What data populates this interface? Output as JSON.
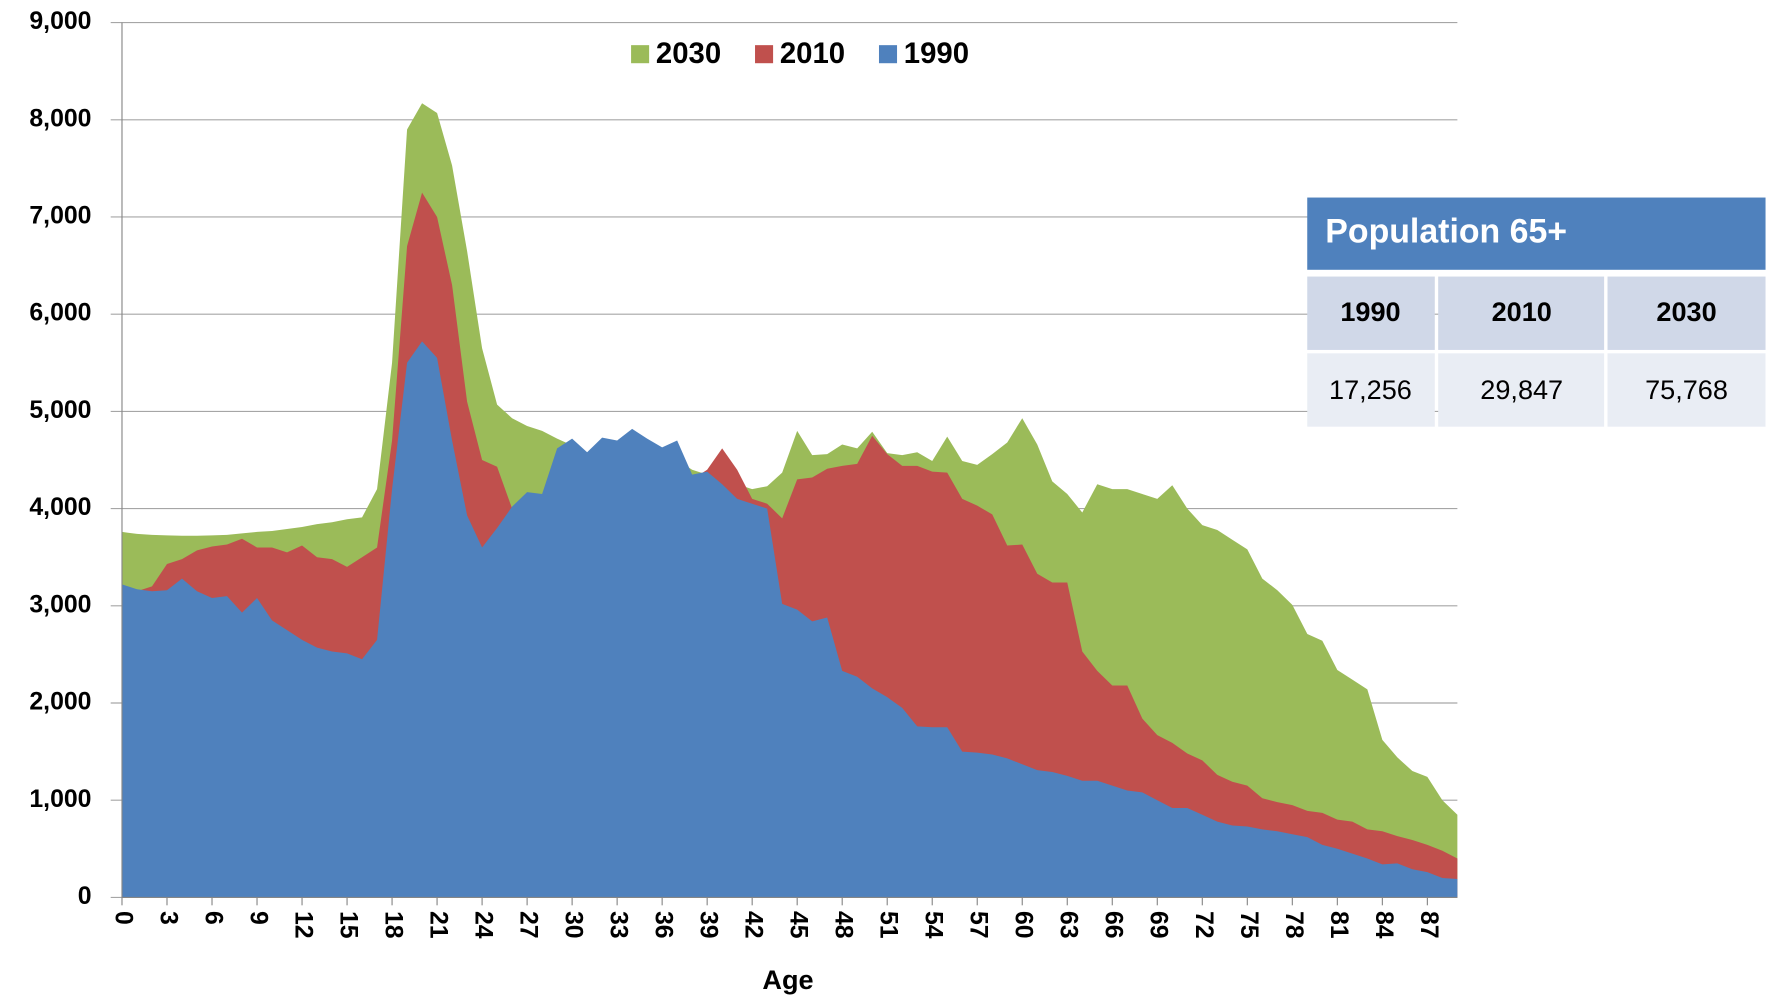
{
  "chart_data": {
    "type": "area",
    "x_label": "Age",
    "x": [
      0,
      1,
      2,
      3,
      4,
      5,
      6,
      7,
      8,
      9,
      10,
      11,
      12,
      13,
      14,
      15,
      16,
      17,
      18,
      19,
      20,
      21,
      22,
      23,
      24,
      25,
      26,
      27,
      28,
      29,
      30,
      31,
      32,
      33,
      34,
      35,
      36,
      37,
      38,
      39,
      40,
      41,
      42,
      43,
      44,
      45,
      46,
      47,
      48,
      49,
      50,
      51,
      52,
      53,
      54,
      55,
      56,
      57,
      58,
      59,
      60,
      61,
      62,
      63,
      64,
      65,
      66,
      67,
      68,
      69,
      70,
      71,
      72,
      73,
      74,
      75,
      76,
      77,
      78,
      79,
      80,
      81,
      82,
      83,
      84,
      85,
      86,
      87,
      88,
      89
    ],
    "xlim": [
      0,
      89
    ],
    "xticks": [
      0,
      3,
      6,
      9,
      12,
      15,
      18,
      21,
      24,
      27,
      30,
      33,
      36,
      39,
      42,
      45,
      48,
      51,
      54,
      57,
      60,
      63,
      66,
      69,
      72,
      75,
      78,
      81,
      84,
      87
    ],
    "ylim": [
      0,
      9000
    ],
    "yticks": [
      0,
      {
        "value": 1000,
        "label": "1,000"
      },
      {
        "value": 2000,
        "label": "2,000"
      },
      {
        "value": 3000,
        "label": "3,000"
      },
      {
        "value": 4000,
        "label": "4,000"
      },
      {
        "value": 5000,
        "label": "5,000"
      },
      {
        "value": 6000,
        "label": "6,000"
      },
      {
        "value": 7000,
        "label": "7,000"
      },
      {
        "value": 8000,
        "label": "8,000"
      },
      {
        "value": 9000,
        "label": "9,000"
      }
    ],
    "grid": true,
    "legend": "top",
    "series": [
      {
        "name": "2030",
        "color": "#9bbb59",
        "values": [
          3760,
          3740,
          3730,
          3725,
          3720,
          3720,
          3725,
          3730,
          3745,
          3760,
          3770,
          3790,
          3810,
          3840,
          3860,
          3890,
          3910,
          4200,
          5500,
          7900,
          8170,
          8070,
          7530,
          6650,
          5650,
          5070,
          4930,
          4850,
          4800,
          4720,
          4650,
          4580,
          4600,
          4600,
          4650,
          4600,
          4550,
          4500,
          4400,
          4350,
          4300,
          4250,
          4200,
          4230,
          4370,
          4800,
          4550,
          4560,
          4660,
          4620,
          4790,
          4570,
          4550,
          4580,
          4490,
          4740,
          4490,
          4450,
          4560,
          4680,
          4930,
          4660,
          4280,
          4150,
          3960,
          4250,
          4200,
          4200,
          4150,
          4100,
          4240,
          4000,
          3830,
          3780,
          3680,
          3580,
          3280,
          3160,
          3010,
          2710,
          2640,
          2340,
          2240,
          2140,
          1620,
          1440,
          1300,
          1240,
          1000,
          850
        ]
      },
      {
        "name": "2010",
        "color": "#c0504d",
        "values": [
          3200,
          3150,
          3200,
          3430,
          3480,
          3570,
          3610,
          3630,
          3690,
          3600,
          3600,
          3550,
          3620,
          3500,
          3480,
          3400,
          3500,
          3600,
          4700,
          6700,
          7250,
          7000,
          6300,
          5100,
          4500,
          4430,
          4000,
          4100,
          4100,
          4500,
          4500,
          4450,
          4500,
          4500,
          4550,
          4500,
          4450,
          4450,
          4300,
          4400,
          4620,
          4400,
          4100,
          4050,
          3900,
          4300,
          4320,
          4410,
          4440,
          4460,
          4750,
          4560,
          4440,
          4440,
          4380,
          4370,
          4100,
          4030,
          3940,
          3620,
          3630,
          3330,
          3240,
          3240,
          2530,
          2330,
          2180,
          2180,
          1840,
          1670,
          1590,
          1480,
          1410,
          1260,
          1190,
          1150,
          1020,
          980,
          950,
          890,
          870,
          800,
          780,
          700,
          680,
          630,
          590,
          540,
          480,
          400
        ]
      },
      {
        "name": "1990",
        "color": "#4f81bd",
        "values": [
          3220,
          3170,
          3150,
          3160,
          3280,
          3150,
          3080,
          3100,
          2930,
          3080,
          2850,
          2750,
          2650,
          2570,
          2530,
          2510,
          2450,
          2650,
          4200,
          5500,
          5720,
          5550,
          4700,
          3930,
          3600,
          3800,
          4020,
          4170,
          4150,
          4620,
          4720,
          4580,
          4730,
          4700,
          4820,
          4720,
          4630,
          4700,
          4350,
          4380,
          4250,
          4100,
          4050,
          4000,
          3020,
          2960,
          2840,
          2880,
          2330,
          2270,
          2150,
          2060,
          1950,
          1760,
          1750,
          1750,
          1500,
          1490,
          1470,
          1430,
          1370,
          1310,
          1290,
          1250,
          1200,
          1200,
          1150,
          1100,
          1080,
          1000,
          920,
          920,
          850,
          780,
          740,
          730,
          700,
          680,
          650,
          620,
          540,
          500,
          450,
          400,
          340,
          350,
          290,
          260,
          200,
          190
        ]
      }
    ]
  },
  "table": {
    "title": "Population 65+",
    "headers": [
      "1990",
      "2010",
      "2030"
    ],
    "rows": [
      [
        "17,256",
        "29,847",
        "75,768"
      ]
    ]
  }
}
